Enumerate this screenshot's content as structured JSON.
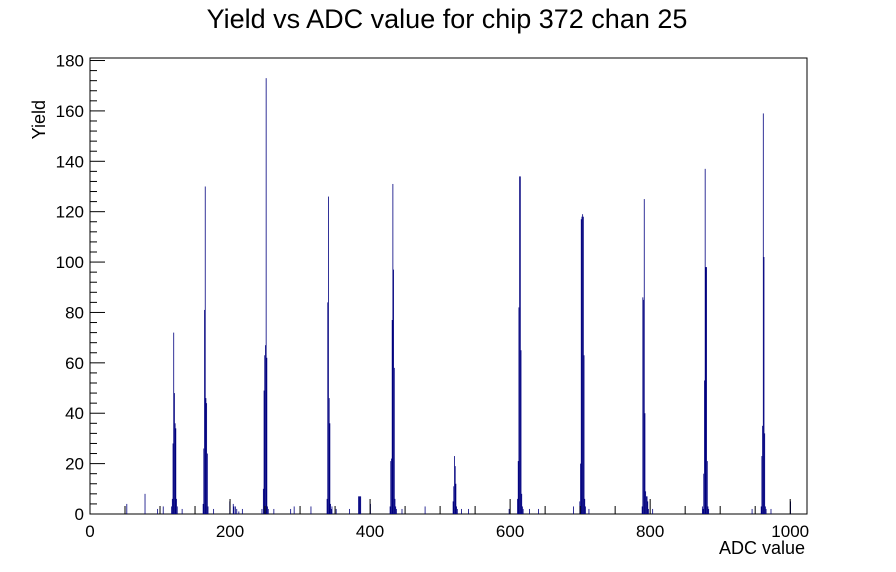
{
  "chart_data": {
    "type": "bar",
    "title": "Yield vs ADC value for chip 372 chan 25",
    "xlabel": "ADC value",
    "ylabel": "Yield",
    "xlim": [
      0,
      1024
    ],
    "ylim": [
      0,
      181
    ],
    "xticks": [
      0,
      200,
      400,
      600,
      800,
      1000
    ],
    "yticks": [
      0,
      20,
      40,
      60,
      80,
      100,
      120,
      140,
      160,
      180
    ],
    "grid": false,
    "legend": "none",
    "line_color": "#00007f",
    "series": [
      {
        "x": [
          52,
          78,
          96,
          104,
          116,
          117,
          118,
          119,
          120,
          121,
          122,
          123,
          124,
          131,
          161,
          162,
          163,
          164,
          165,
          166,
          167,
          168,
          176,
          199,
          204,
          205,
          207,
          209,
          212,
          217,
          245,
          247,
          248,
          249,
          250,
          251,
          252,
          253,
          254,
          262,
          286,
          291,
          315,
          338,
          339,
          340,
          341,
          342,
          343,
          344,
          345,
          351,
          370,
          383,
          384,
          385,
          386,
          400,
          428,
          429,
          430,
          431,
          432,
          433,
          434,
          435,
          436,
          437,
          445,
          478,
          518,
          519,
          520,
          521,
          522,
          523,
          524,
          530,
          540,
          598,
          610,
          611,
          612,
          613,
          614,
          615,
          616,
          617,
          618,
          627,
          640,
          690,
          699,
          700,
          701,
          702,
          703,
          704,
          705,
          706,
          707,
          712,
          788,
          789,
          790,
          791,
          792,
          793,
          794,
          795,
          796,
          797,
          803,
          874,
          875,
          876,
          877,
          878,
          879,
          880,
          881,
          882,
          883,
          945,
          958,
          959,
          960,
          961,
          962,
          963,
          964,
          965,
          972,
          1000
        ],
        "y": [
          4,
          8,
          2,
          3,
          3,
          6,
          28,
          72,
          48,
          36,
          34,
          6,
          3,
          2,
          4,
          26,
          81,
          130,
          46,
          44,
          24,
          3,
          2,
          5,
          4,
          3,
          3,
          2,
          1,
          2,
          2,
          10,
          49,
          63,
          67,
          173,
          62,
          3,
          2,
          2,
          2,
          3,
          3,
          6,
          84,
          126,
          46,
          36,
          4,
          2,
          3,
          2,
          2,
          7,
          7,
          7,
          7,
          4,
          3,
          21,
          22,
          77,
          131,
          97,
          58,
          6,
          3,
          2,
          2,
          3,
          5,
          11,
          23,
          19,
          12,
          3,
          2,
          2,
          2,
          2,
          6,
          21,
          82,
          134,
          134,
          65,
          8,
          3,
          2,
          2,
          2,
          3,
          5,
          20,
          117,
          118,
          119,
          118,
          63,
          6,
          3,
          2,
          3,
          86,
          85,
          125,
          40,
          9,
          7,
          7,
          5,
          2,
          2,
          3,
          2,
          16,
          53,
          137,
          98,
          98,
          21,
          3,
          2,
          2,
          3,
          23,
          35,
          159,
          102,
          32,
          3,
          2,
          2,
          5
        ]
      }
    ]
  }
}
